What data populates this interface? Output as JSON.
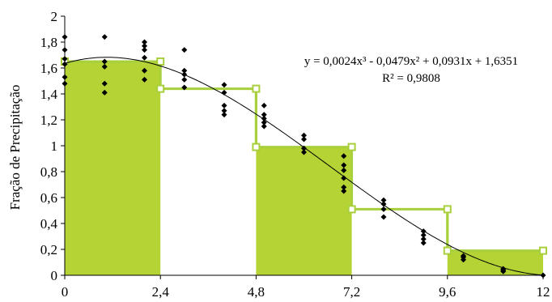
{
  "chart_data": {
    "type": "bar",
    "title": "",
    "xlabel": "",
    "ylabel": "Fração  de Precipitação",
    "xlim": [
      0,
      12
    ],
    "ylim": [
      0,
      2
    ],
    "x_ticks": [
      "0",
      "2,4",
      "4,8",
      "7,2",
      "9,6",
      "12"
    ],
    "x_tick_values": [
      0,
      2.4,
      4.8,
      7.2,
      9.6,
      12
    ],
    "y_ticks": [
      "0",
      "0,2",
      "0,4",
      "0,6",
      "0,8",
      "1",
      "1,2",
      "1,4",
      "1,6",
      "1,8",
      "2"
    ],
    "y_tick_values": [
      0,
      0.2,
      0.4,
      0.6,
      0.8,
      1,
      1.2,
      1.4,
      1.6,
      1.8,
      2
    ],
    "grid": false,
    "colors": {
      "fill": "#b5d334",
      "step_line": "#a8cf3c",
      "marker": "#000000",
      "curve": "#000000"
    },
    "bars": [
      {
        "x0": 0,
        "x1": 2.4,
        "value": 1.65,
        "filled": true
      },
      {
        "x0": 2.4,
        "x1": 4.8,
        "value": 1.44,
        "filled": false
      },
      {
        "x0": 4.8,
        "x1": 7.2,
        "value": 0.99,
        "filled": true
      },
      {
        "x0": 7.2,
        "x1": 9.6,
        "value": 0.51,
        "filled": false
      },
      {
        "x0": 9.6,
        "x1": 12,
        "value": 0.19,
        "filled": true
      }
    ],
    "scatter": [
      {
        "x": 0,
        "y": [
          1.84,
          1.74,
          1.67,
          1.63,
          1.53,
          1.48
        ]
      },
      {
        "x": 1,
        "y": [
          1.84,
          1.65,
          1.61,
          1.48,
          1.41
        ]
      },
      {
        "x": 2,
        "y": [
          1.8,
          1.77,
          1.74,
          1.68,
          1.58,
          1.51
        ]
      },
      {
        "x": 3,
        "y": [
          1.74,
          1.58,
          1.55,
          1.51,
          1.45
        ]
      },
      {
        "x": 4,
        "y": [
          1.47,
          1.41,
          1.31,
          1.27,
          1.24
        ]
      },
      {
        "x": 5,
        "y": [
          1.31,
          1.24,
          1.21,
          1.18,
          1.15
        ]
      },
      {
        "x": 6,
        "y": [
          1.08,
          1.05,
          0.98,
          0.95
        ]
      },
      {
        "x": 7,
        "y": [
          0.92,
          0.85,
          0.81,
          0.75,
          0.68,
          0.65
        ]
      },
      {
        "x": 8,
        "y": [
          0.58,
          0.55,
          0.51,
          0.45
        ]
      },
      {
        "x": 9,
        "y": [
          0.34,
          0.31,
          0.28,
          0.25
        ]
      },
      {
        "x": 10,
        "y": [
          0.15,
          0.14,
          0.12
        ]
      },
      {
        "x": 11,
        "y": [
          0.05,
          0.04,
          0.03
        ]
      },
      {
        "x": 12,
        "y": [
          0.0
        ]
      }
    ],
    "trendline": {
      "type": "polynomial",
      "coefficients": [
        0.0024,
        -0.0479,
        0.0931,
        1.6351
      ],
      "equation": "y = 0,0024x³ - 0,0479x² + 0,0931x + 1,6351",
      "r_squared": "R² = 0,9808"
    }
  }
}
